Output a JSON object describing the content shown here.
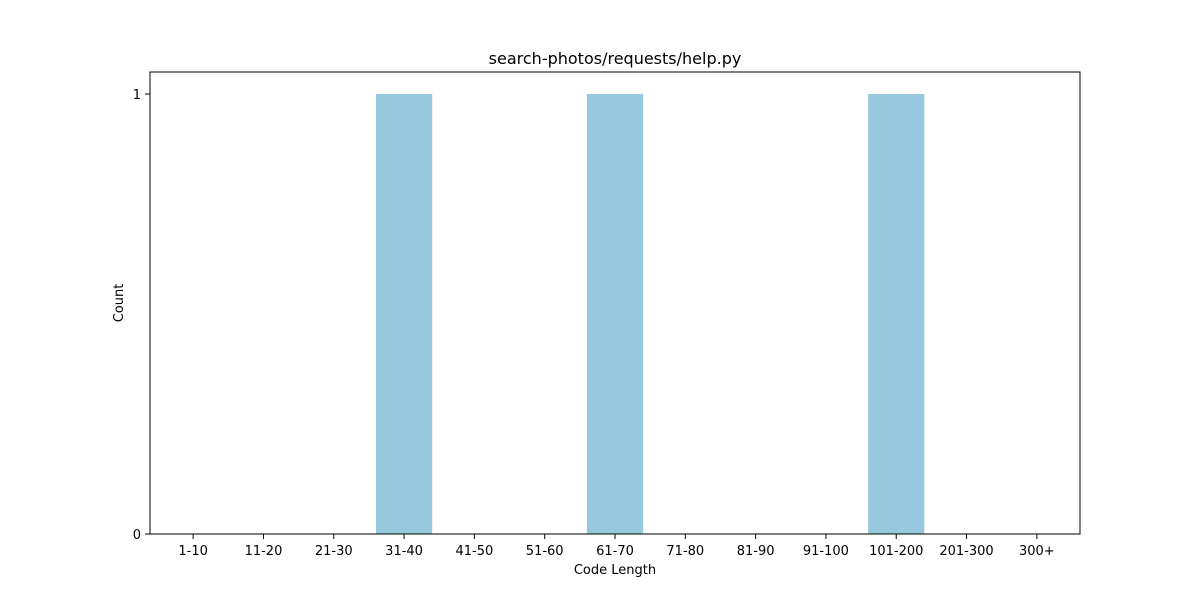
{
  "chart_data": {
    "type": "bar",
    "title": "search-photos/requests/help.py",
    "xlabel": "Code Length",
    "ylabel": "Count",
    "categories": [
      "1-10",
      "11-20",
      "21-30",
      "31-40",
      "41-50",
      "51-60",
      "61-70",
      "71-80",
      "81-90",
      "91-100",
      "101-200",
      "201-300",
      "300+"
    ],
    "values": [
      0,
      0,
      0,
      1,
      0,
      0,
      1,
      0,
      0,
      0,
      1,
      0,
      0
    ],
    "yticks": [
      0,
      1
    ],
    "ylim": [
      0,
      1.05
    ],
    "grid": false,
    "bar_color": "#96c9dd"
  }
}
